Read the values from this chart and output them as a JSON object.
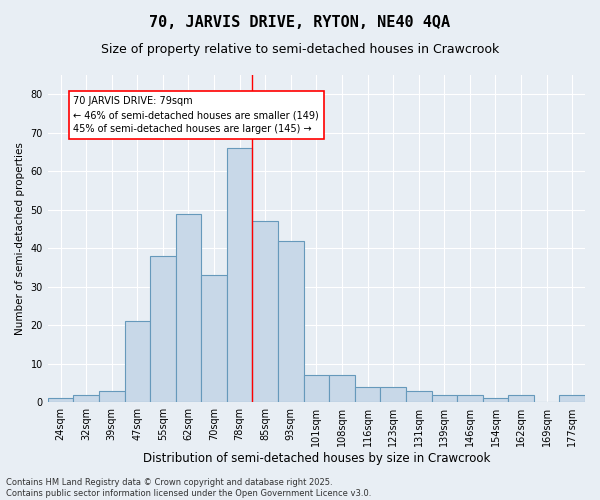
{
  "title": "70, JARVIS DRIVE, RYTON, NE40 4QA",
  "subtitle": "Size of property relative to semi-detached houses in Crawcrook",
  "xlabel": "Distribution of semi-detached houses by size in Crawcrook",
  "ylabel": "Number of semi-detached properties",
  "bins": [
    "24sqm",
    "32sqm",
    "39sqm",
    "47sqm",
    "55sqm",
    "62sqm",
    "70sqm",
    "78sqm",
    "85sqm",
    "93sqm",
    "101sqm",
    "108sqm",
    "116sqm",
    "123sqm",
    "131sqm",
    "139sqm",
    "146sqm",
    "154sqm",
    "162sqm",
    "169sqm",
    "177sqm"
  ],
  "values": [
    1,
    2,
    3,
    21,
    38,
    49,
    33,
    66,
    47,
    42,
    7,
    7,
    4,
    4,
    3,
    2,
    2,
    1,
    2,
    0,
    2
  ],
  "bar_color": "#c8d8e8",
  "bar_edge_color": "#6699bb",
  "red_line_bin": 7,
  "annotation_text_line1": "70 JARVIS DRIVE: 79sqm",
  "annotation_text_line2": "← 46% of semi-detached houses are smaller (149)",
  "annotation_text_line3": "45% of semi-detached houses are larger (145) →",
  "annotation_box_color": "white",
  "annotation_box_edge": "red",
  "ylim": [
    0,
    85
  ],
  "yticks": [
    0,
    10,
    20,
    30,
    40,
    50,
    60,
    70,
    80
  ],
  "background_color": "#e8eef4",
  "grid_color": "white",
  "footer": "Contains HM Land Registry data © Crown copyright and database right 2025.\nContains public sector information licensed under the Open Government Licence v3.0.",
  "title_fontsize": 11,
  "subtitle_fontsize": 9,
  "xlabel_fontsize": 8.5,
  "ylabel_fontsize": 7.5,
  "tick_fontsize": 7,
  "annotation_fontsize": 7,
  "footer_fontsize": 6
}
